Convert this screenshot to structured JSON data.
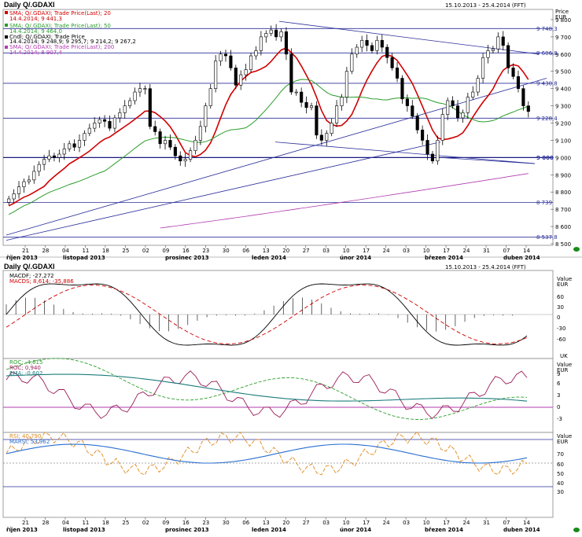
{
  "header": {
    "title": "Daily Q/.GDAXI",
    "range": "15.10.2013 - 25.4.2014 (FFT)",
    "value_label": "Price",
    "unit_label": "EUR",
    "lower_title": "Daily Q/.GDAXI",
    "lower_range": "15.10.2013 - 25.4.2014 (FFT)"
  },
  "legend_main": [
    {
      "name": "SMA; Q/.GDAXI; Trade Price(Last); 20",
      "value": "14.4.2014; 9 441,3",
      "color": "#d00000"
    },
    {
      "name": "SMA; Q/.GDAXI; Trade Price(Last); 50",
      "value": "14.4.2014; 9 464,0",
      "color": "#2a9d2a"
    },
    {
      "name": "Cndl; Q/.GDAXI; Trade Price",
      "value": "14.4.2014; 9 248,9; 9 295,7; 9 214,2; 9 267,2",
      "color": "#000000"
    },
    {
      "name": "SMA; Q/.GDAXI; Trade Price(Last); 200",
      "value": "14.4.2014; 8 907,4",
      "color": "#b03cb0"
    }
  ],
  "price_axis": [
    "9 800",
    "9 700",
    "9 600",
    "9 500",
    "9 400",
    "9 300",
    "9 200",
    "9 100",
    "9 000",
    "8 900",
    "8 800",
    "8 700",
    "8 600",
    "8 500"
  ],
  "level_labels": [
    "9 748,3",
    "9 606,8",
    "9 430,8",
    "9 228,4",
    "9 000",
    "8 739",
    "8 537,8"
  ],
  "date_ticks": [
    "21",
    "28",
    "04",
    "11",
    "18",
    "25",
    "02",
    "09",
    "16",
    "23",
    "30",
    "06",
    "13",
    "20",
    "27",
    "03",
    "10",
    "17",
    "24",
    "03",
    "10",
    "17",
    "24",
    "31",
    "07",
    "14"
  ],
  "month_labels": [
    "říjen 2013",
    "listopad 2013",
    "prosinec 2013",
    "leden 2014",
    "únor 2014",
    "březen 2014",
    "duben 2014"
  ],
  "macd_legend": [
    "MACDF; -27,272",
    "MACDS; 8,614; -35,886"
  ],
  "macd_axis": [
    "Value",
    "EUR",
    "60",
    "30",
    "0",
    "-30",
    "-60"
  ],
  "roc_legend": [
    "ROC; -4,615",
    "ROC; 0,940",
    "EMA; -0,602"
  ],
  "roc_axis": [
    "Value",
    "EUR",
    "9",
    "6",
    "3",
    "0",
    "-3"
  ],
  "rsi_legend": [
    "RSI; 40,790",
    "MARSI; 53,962"
  ],
  "rsi_axis": [
    "Value",
    "EUR",
    "70",
    "60",
    "50",
    "40",
    "30"
  ],
  "small_tag": "UK",
  "chart_data": [
    {
      "type": "candlestick",
      "title": "Daily Q/.GDAXI",
      "ylim": [
        8500,
        9850
      ],
      "x_range": [
        "2013-10-15",
        "2014-04-25"
      ],
      "candles_close": [
        8760,
        8790,
        8830,
        8860,
        8870,
        8920,
        8960,
        8990,
        9010,
        9000,
        9020,
        9050,
        9080,
        9060,
        9100,
        9140,
        9170,
        9200,
        9220,
        9210,
        9170,
        9230,
        9260,
        9300,
        9330,
        9380,
        9400,
        9400,
        9180,
        9150,
        9080,
        9100,
        9060,
        9010,
        8980,
        8990,
        9040,
        9100,
        9180,
        9300,
        9400,
        9560,
        9600,
        9590,
        9520,
        9420,
        9480,
        9510,
        9590,
        9620,
        9700,
        9720,
        9740,
        9700,
        9730,
        9600,
        9380,
        9380,
        9320,
        9290,
        9300,
        9130,
        9100,
        9140,
        9200,
        9300,
        9350,
        9500,
        9600,
        9640,
        9680,
        9650,
        9620,
        9680,
        9640,
        9580,
        9520,
        9460,
        9340,
        9300,
        9240,
        9160,
        9100,
        9020,
        8980,
        9100,
        9250,
        9330,
        9300,
        9230,
        9260,
        9350,
        9380,
        9460,
        9580,
        9620,
        9630,
        9700,
        9650,
        9520,
        9470,
        9400,
        9300,
        9267
      ],
      "sma20_end": 9441.3,
      "sma50_end": 9464.0,
      "sma200_end": 8907.4,
      "horizontal_levels": [
        9748.3,
        9606.8,
        9430.8,
        9228.4,
        9000,
        8739,
        8537.8
      ]
    },
    {
      "type": "line",
      "title": "MACD",
      "series": [
        {
          "name": "MACDF",
          "last": -27.272
        },
        {
          "name": "MACDS",
          "last": 8.614
        }
      ],
      "histogram_last": -35.886,
      "ylim": [
        -80,
        80
      ]
    },
    {
      "type": "line",
      "title": "ROC",
      "series": [
        {
          "name": "ROC",
          "last": -4.615
        },
        {
          "name": "ROC",
          "last": 0.94
        },
        {
          "name": "EMA",
          "last": -0.602
        }
      ],
      "ylim": [
        -5,
        11
      ]
    },
    {
      "type": "line",
      "title": "RSI",
      "series": [
        {
          "name": "RSI",
          "last": 40.79
        },
        {
          "name": "MARSI",
          "last": 53.962
        }
      ],
      "reference_levels": [
        70,
        50,
        30
      ],
      "ylim": [
        20,
        80
      ]
    }
  ]
}
